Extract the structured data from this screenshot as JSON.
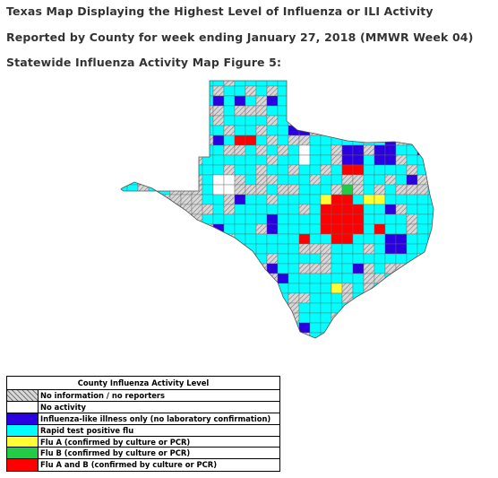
{
  "header": {
    "line1": "Texas Map Displaying the Highest Level of Influenza or ILI Activity",
    "line2": "Reported by County for week ending January 27, 2018 (MMWR Week 04)",
    "line3": "Statewide Influenza Activity Map Figure 5:"
  },
  "legend": {
    "title": "County Influenza Activity Level",
    "items": [
      {
        "key": "none",
        "label": "No information / no reporters",
        "color": "#cccccc",
        "pattern": "hatch"
      },
      {
        "key": "noact",
        "label": "No activity",
        "color": "#ffffff"
      },
      {
        "key": "ili",
        "label": "Influenza-like illness only (no laboratory confirmation)",
        "color": "#2a00e0"
      },
      {
        "key": "rapid",
        "label": "Rapid test positive flu",
        "color": "#00ffff"
      },
      {
        "key": "fluA",
        "label": "Flu A (confirmed by culture or PCR)",
        "color": "#ffff33"
      },
      {
        "key": "fluB",
        "label": "Flu B (confirmed by culture or PCR)",
        "color": "#22cc44"
      },
      {
        "key": "fluAB",
        "label": "Flu A and B (confirmed by culture or PCR)",
        "color": "#ff0000"
      }
    ]
  }
}
